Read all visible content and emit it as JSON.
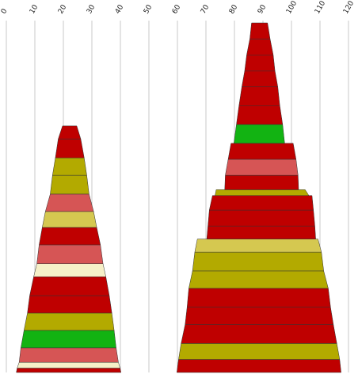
{
  "chart_data": {
    "type": "stacked-trapezoid",
    "x_ticks": [
      0,
      10,
      20,
      30,
      40,
      50,
      60,
      70,
      80,
      90,
      100,
      110,
      120
    ],
    "xlim": [
      0,
      120
    ],
    "grid": true,
    "palette": {
      "red": "#bf0000",
      "pink": "#d65555",
      "olive": "#b3aa00",
      "yellow": "#d5c850",
      "green": "#12b312",
      "cream": "#f6f0c8"
    },
    "stacks": [
      {
        "segments": [
          {
            "top_left": 3.8,
            "top_right": 39.9,
            "bottom_left": 3.5,
            "bottom_right": 40.2,
            "height": 1.5,
            "color": "red"
          },
          {
            "top_left": 4.5,
            "top_right": 39.3,
            "bottom_left": 3.8,
            "bottom_right": 39.9,
            "height": 2.0,
            "color": "cream"
          },
          {
            "top_left": 5.1,
            "top_right": 38.5,
            "bottom_left": 4.5,
            "bottom_right": 39.3,
            "height": 5.0,
            "color": "pink"
          },
          {
            "top_left": 6.2,
            "top_right": 37.8,
            "bottom_left": 5.1,
            "bottom_right": 38.5,
            "height": 6.0,
            "color": "green"
          },
          {
            "top_left": 7.4,
            "top_right": 37.0,
            "bottom_left": 6.2,
            "bottom_right": 37.8,
            "height": 6.0,
            "color": "olive"
          },
          {
            "top_left": 8.2,
            "top_right": 36.1,
            "bottom_left": 7.4,
            "bottom_right": 37.0,
            "height": 6.0,
            "color": "red"
          },
          {
            "top_left": 9.6,
            "top_right": 34.9,
            "bottom_left": 8.2,
            "bottom_right": 36.1,
            "height": 6.5,
            "color": "red"
          },
          {
            "top_left": 10.7,
            "top_right": 33.9,
            "bottom_left": 9.6,
            "bottom_right": 34.9,
            "height": 4.5,
            "color": "cream"
          },
          {
            "top_left": 11.5,
            "top_right": 33.0,
            "bottom_left": 10.7,
            "bottom_right": 33.9,
            "height": 6.5,
            "color": "pink"
          },
          {
            "top_left": 12.6,
            "top_right": 31.7,
            "bottom_left": 11.5,
            "bottom_right": 33.0,
            "height": 6.0,
            "color": "red"
          },
          {
            "top_left": 13.7,
            "top_right": 30.6,
            "bottom_left": 12.6,
            "bottom_right": 31.7,
            "height": 5.5,
            "color": "yellow"
          },
          {
            "top_left": 15.4,
            "top_right": 29.0,
            "bottom_left": 13.7,
            "bottom_right": 30.6,
            "height": 6.0,
            "color": "pink"
          },
          {
            "top_left": 16.2,
            "top_right": 28.2,
            "bottom_left": 15.4,
            "bottom_right": 29.0,
            "height": 6.5,
            "color": "olive"
          },
          {
            "top_left": 17.2,
            "top_right": 27.3,
            "bottom_left": 16.2,
            "bottom_right": 28.2,
            "height": 6.0,
            "color": "olive"
          },
          {
            "top_left": 18.2,
            "top_right": 26.1,
            "bottom_left": 17.2,
            "bottom_right": 27.3,
            "height": 6.5,
            "color": "red"
          },
          {
            "top_left": 19.7,
            "top_right": 24.7,
            "bottom_left": 18.2,
            "bottom_right": 26.1,
            "height": 4.5,
            "color": "red"
          }
        ]
      },
      {
        "segments": [
          {
            "top_left": 60.4,
            "top_right": 116.9,
            "bottom_left": 59.8,
            "bottom_right": 117.4,
            "height": 4.5,
            "color": "red"
          },
          {
            "top_left": 61.3,
            "top_right": 115.9,
            "bottom_left": 60.4,
            "bottom_right": 116.9,
            "height": 5.5,
            "color": "olive"
          },
          {
            "top_left": 62.7,
            "top_right": 114.7,
            "bottom_left": 61.3,
            "bottom_right": 115.9,
            "height": 6.5,
            "color": "red"
          },
          {
            "top_left": 63.4,
            "top_right": 113.7,
            "bottom_left": 62.7,
            "bottom_right": 114.7,
            "height": 6.0,
            "color": "red"
          },
          {
            "top_left": 64.0,
            "top_right": 112.9,
            "bottom_left": 63.4,
            "bottom_right": 113.7,
            "height": 6.5,
            "color": "red"
          },
          {
            "top_left": 65.3,
            "top_right": 111.3,
            "bottom_left": 64.0,
            "bottom_right": 112.9,
            "height": 6.0,
            "color": "olive"
          },
          {
            "top_left": 66.1,
            "top_right": 110.5,
            "bottom_left": 65.3,
            "bottom_right": 111.3,
            "height": 6.5,
            "color": "olive"
          },
          {
            "top_left": 67.0,
            "top_right": 109.3,
            "bottom_left": 66.1,
            "bottom_right": 110.5,
            "height": 4.5,
            "color": "yellow"
          },
          {
            "top_left": 70.7,
            "top_right": 108.2,
            "bottom_left": 70.3,
            "bottom_right": 108.5,
            "height": 4.5,
            "color": "red"
          },
          {
            "top_left": 71.2,
            "top_right": 107.7,
            "bottom_left": 70.7,
            "bottom_right": 108.2,
            "height": 5.5,
            "color": "red"
          },
          {
            "top_left": 72.3,
            "top_right": 107.2,
            "bottom_left": 71.2,
            "bottom_right": 107.7,
            "height": 5.0,
            "color": "red"
          },
          {
            "top_left": 73.6,
            "top_right": 104.8,
            "bottom_left": 73.2,
            "bottom_right": 106.1,
            "height": 2.0,
            "color": "olive"
          },
          {
            "top_left": 76.8,
            "top_right": 102.3,
            "bottom_left": 76.6,
            "bottom_right": 102.5,
            "height": 5.0,
            "color": "red"
          },
          {
            "top_left": 77.8,
            "top_right": 101.6,
            "bottom_left": 76.8,
            "bottom_right": 102.3,
            "height": 5.5,
            "color": "pink"
          },
          {
            "top_left": 78.8,
            "top_right": 100.6,
            "bottom_left": 77.8,
            "bottom_right": 101.6,
            "height": 5.5,
            "color": "red"
          },
          {
            "top_left": 80.7,
            "top_right": 96.9,
            "bottom_left": 79.8,
            "bottom_right": 97.6,
            "height": 6.5,
            "color": "green"
          },
          {
            "top_left": 81.6,
            "top_right": 95.9,
            "bottom_left": 80.7,
            "bottom_right": 96.9,
            "height": 6.5,
            "color": "red"
          },
          {
            "top_left": 82.6,
            "top_right": 95.2,
            "bottom_left": 81.6,
            "bottom_right": 95.9,
            "height": 6.5,
            "color": "red"
          },
          {
            "top_left": 83.6,
            "top_right": 94.2,
            "bottom_left": 82.6,
            "bottom_right": 95.2,
            "height": 5.5,
            "color": "red"
          },
          {
            "top_left": 84.3,
            "top_right": 93.6,
            "bottom_left": 83.6,
            "bottom_right": 94.2,
            "height": 5.5,
            "color": "red"
          },
          {
            "top_left": 85.4,
            "top_right": 92.5,
            "bottom_left": 84.3,
            "bottom_right": 93.6,
            "height": 5.5,
            "color": "red"
          },
          {
            "top_left": 86.0,
            "top_right": 91.6,
            "bottom_left": 85.4,
            "bottom_right": 92.5,
            "height": 5.5,
            "color": "red"
          }
        ]
      }
    ]
  }
}
